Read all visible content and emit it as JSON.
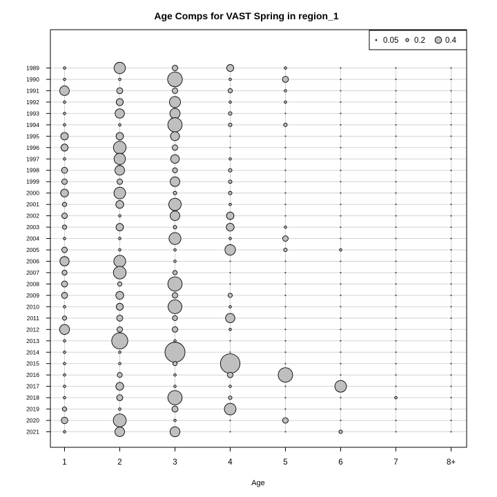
{
  "chart_data": {
    "type": "bubble",
    "title": "Age Comps for VAST Spring in region_1",
    "xlabel": "Age",
    "ylabel": "",
    "ages": [
      "1",
      "2",
      "3",
      "4",
      "5",
      "6",
      "7",
      "8+"
    ],
    "years": [
      "1989",
      "1990",
      "1991",
      "1992",
      "1993",
      "1994",
      "1995",
      "1996",
      "1997",
      "1998",
      "1999",
      "2000",
      "2001",
      "2002",
      "2003",
      "2004",
      "2005",
      "2006",
      "2007",
      "2008",
      "2009",
      "2010",
      "2011",
      "2012",
      "2013",
      "2014",
      "2015",
      "2016",
      "2017",
      "2018",
      "2019",
      "2020",
      "2021"
    ],
    "proportions": [
      [
        0.01,
        0.21,
        0.05,
        0.08,
        0.01,
        0.0,
        0.0,
        0.0
      ],
      [
        0.01,
        0.01,
        0.35,
        0.01,
        0.06,
        0.0,
        0.0,
        0.0
      ],
      [
        0.15,
        0.06,
        0.05,
        0.03,
        0.01,
        0.0,
        0.0,
        0.0
      ],
      [
        0.01,
        0.08,
        0.2,
        0.01,
        0.01,
        0.0,
        0.0,
        0.0
      ],
      [
        0.01,
        0.14,
        0.17,
        0.02,
        0.0,
        0.0,
        0.0,
        0.0
      ],
      [
        0.01,
        0.01,
        0.33,
        0.02,
        0.02,
        0.0,
        0.0,
        0.0
      ],
      [
        0.09,
        0.09,
        0.13,
        0.0,
        0.0,
        0.0,
        0.0,
        0.0
      ],
      [
        0.08,
        0.26,
        0.05,
        0.0,
        0.0,
        0.0,
        0.0,
        0.0
      ],
      [
        0.01,
        0.21,
        0.12,
        0.01,
        0.0,
        0.0,
        0.0,
        0.0
      ],
      [
        0.06,
        0.15,
        0.04,
        0.02,
        0.0,
        0.0,
        0.0,
        0.0
      ],
      [
        0.05,
        0.05,
        0.15,
        0.02,
        0.0,
        0.0,
        0.0,
        0.0
      ],
      [
        0.1,
        0.22,
        0.02,
        0.02,
        0.0,
        0.0,
        0.0,
        0.0
      ],
      [
        0.03,
        0.1,
        0.25,
        0.01,
        0.0,
        0.0,
        0.0,
        0.0
      ],
      [
        0.05,
        0.01,
        0.15,
        0.09,
        0.0,
        0.0,
        0.0,
        0.0
      ],
      [
        0.03,
        0.09,
        0.02,
        0.1,
        0.01,
        0.0,
        0.0,
        0.0
      ],
      [
        0.01,
        0.01,
        0.23,
        0.01,
        0.05,
        0.0,
        0.0,
        0.0
      ],
      [
        0.05,
        0.01,
        0.01,
        0.18,
        0.02,
        0.01,
        0.0,
        0.0
      ],
      [
        0.14,
        0.23,
        0.01,
        0.0,
        0.0,
        0.0,
        0.0,
        0.0
      ],
      [
        0.04,
        0.26,
        0.03,
        0.0,
        0.0,
        0.0,
        0.0,
        0.0
      ],
      [
        0.06,
        0.03,
        0.33,
        0.0,
        0.0,
        0.0,
        0.0,
        0.0
      ],
      [
        0.06,
        0.1,
        0.05,
        0.03,
        0.0,
        0.0,
        0.0,
        0.0
      ],
      [
        0.01,
        0.08,
        0.31,
        0.01,
        0.0,
        0.0,
        0.0,
        0.0
      ],
      [
        0.03,
        0.06,
        0.04,
        0.14,
        0.0,
        0.0,
        0.0,
        0.0
      ],
      [
        0.16,
        0.05,
        0.05,
        0.01,
        0.0,
        0.0,
        0.0,
        0.0
      ],
      [
        0.01,
        0.42,
        0.01,
        0.0,
        0.0,
        0.0,
        0.0,
        0.0
      ],
      [
        0.01,
        0.01,
        0.65,
        0.0,
        0.0,
        0.0,
        0.0,
        0.0
      ],
      [
        0.01,
        0.01,
        0.03,
        0.62,
        0.0,
        0.0,
        0.0,
        0.0
      ],
      [
        0.01,
        0.04,
        0.01,
        0.05,
        0.34,
        0.0,
        0.0,
        0.0
      ],
      [
        0.01,
        0.1,
        0.01,
        0.01,
        0.0,
        0.22,
        0.0,
        0.0
      ],
      [
        0.01,
        0.06,
        0.33,
        0.02,
        0.0,
        0.0,
        0.01,
        0.0
      ],
      [
        0.03,
        0.01,
        0.06,
        0.22,
        0.0,
        0.0,
        0.0,
        0.0
      ],
      [
        0.07,
        0.27,
        0.01,
        0.0,
        0.05,
        0.0,
        0.0,
        0.0
      ],
      [
        0.01,
        0.15,
        0.16,
        0.0,
        0.0,
        0.02,
        0.0,
        0.0
      ]
    ],
    "legend": {
      "placement": "top-right",
      "labels": [
        "0.05",
        "0.2",
        "0.4"
      ],
      "values": [
        0.05,
        0.2,
        0.4
      ]
    },
    "grid": true,
    "colors": {
      "bubble_fill": "#bfbfbf",
      "bubble_stroke": "#000000",
      "gridline": "#d3d3d3"
    }
  }
}
